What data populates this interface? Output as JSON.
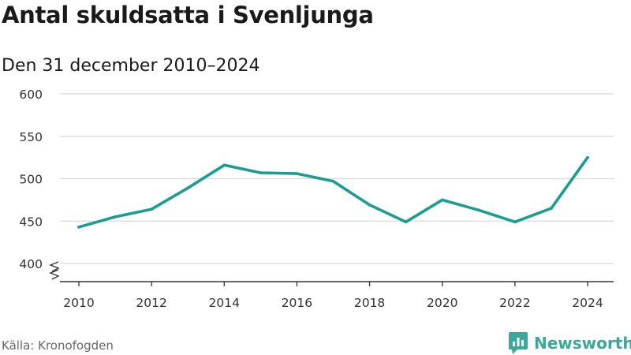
{
  "header": {
    "title": "Antal skuldsatta i Svenljunga",
    "subtitle": "Den 31 december 2010–2024"
  },
  "footer": {
    "source": "Källa: Kronofogden",
    "brand": "Newsworthy"
  },
  "colors": {
    "line": "#1a9e8f",
    "grid": "#d9d9d9",
    "axis": "#333333",
    "brand": "#3aa89a"
  },
  "chart_data": {
    "type": "line",
    "title": "Antal skuldsatta i Svenljunga",
    "subtitle": "Den 31 december 2010–2024",
    "xlabel": "",
    "ylabel": "",
    "x": [
      2010,
      2011,
      2012,
      2013,
      2014,
      2015,
      2016,
      2017,
      2018,
      2019,
      2020,
      2021,
      2022,
      2023,
      2024
    ],
    "values": [
      443,
      455,
      464,
      489,
      516,
      507,
      506,
      497,
      469,
      449,
      475,
      463,
      449,
      465,
      525
    ],
    "xlim": [
      2010,
      2024
    ],
    "ylim": [
      400,
      600
    ],
    "x_ticks": [
      "2010",
      "2012",
      "2014",
      "2016",
      "2018",
      "2020",
      "2022",
      "2024"
    ],
    "y_ticks": [
      "400",
      "450",
      "500",
      "550",
      "600"
    ],
    "grid": true,
    "axis_break": true
  }
}
